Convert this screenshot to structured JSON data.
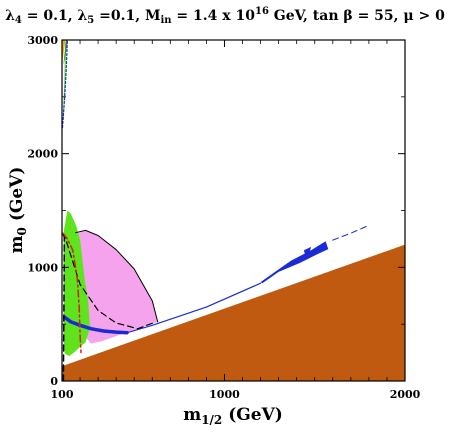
{
  "chart_data": {
    "type": "area",
    "title": {
      "l4_sym": "λ",
      "l4_sub": "4",
      "l4_val": " = 0.1, ",
      "l5_sym": "λ",
      "l5_sub": "5",
      "l5_val": " =0.1, M",
      "min_sub": "in",
      "min_val": " = 1.4 x 10",
      "min_exp": "16",
      "min_unit": " GeV, tan ",
      "beta_sym": "β",
      "tan_val": " = 55,  ",
      "mu_sym": "μ",
      "mu_val": " > 0"
    },
    "xlabel": {
      "main": "m",
      "sub": "1/2",
      "unit": " (GeV)"
    },
    "ylabel": {
      "main": "m",
      "sub": "0",
      "unit": " (GeV)"
    },
    "xlim": [
      100,
      2000
    ],
    "ylim": [
      0,
      3000
    ],
    "xticks": [
      {
        "value": 100,
        "label": "100"
      },
      {
        "value": 1000,
        "label": "1000"
      },
      {
        "value": 2000,
        "label": "2000"
      }
    ],
    "yticks": [
      {
        "value": 0,
        "label": "0"
      },
      {
        "value": 1000,
        "label": "1000"
      },
      {
        "value": 2000,
        "label": "2000"
      },
      {
        "value": 3000,
        "label": "3000"
      }
    ],
    "minor_xticks": [
      200,
      300,
      400,
      500,
      600,
      700,
      800,
      900,
      1100,
      1200,
      1300,
      1400,
      1500,
      1600,
      1700,
      1800,
      1900
    ],
    "minor_yticks": [
      500,
      1500,
      2500
    ],
    "colors": {
      "brown": "#c05a10",
      "green": "#5ee31c",
      "pink": "#f5a3ec",
      "orange": "#f7a52a",
      "dark_green": "#2f8a2a",
      "blue": "#1a2bd6",
      "red": "#d42020",
      "black": "#000000"
    },
    "regions": [
      {
        "name": "brown-stau-lsp-region",
        "color": "brown",
        "points": [
          [
            100,
            130
          ],
          [
            2000,
            1200
          ],
          [
            2000,
            0
          ],
          [
            100,
            0
          ]
        ]
      },
      {
        "name": "pink-gmu-region",
        "color": "pink",
        "points": [
          [
            175,
            1300
          ],
          [
            230,
            1320
          ],
          [
            300,
            1275
          ],
          [
            400,
            1150
          ],
          [
            500,
            980
          ],
          [
            600,
            700
          ],
          [
            630,
            520
          ],
          [
            520,
            460
          ],
          [
            400,
            395
          ],
          [
            320,
            350
          ],
          [
            260,
            330
          ],
          [
            210,
            430
          ],
          [
            180,
            700
          ],
          [
            170,
            1000
          ]
        ]
      },
      {
        "name": "green-bsg-region",
        "color": "green",
        "points": [
          [
            110,
            1320
          ],
          [
            130,
            1500
          ],
          [
            150,
            1470
          ],
          [
            180,
            1360
          ],
          [
            200,
            1240
          ],
          [
            225,
            900
          ],
          [
            245,
            700
          ],
          [
            255,
            470
          ],
          [
            230,
            340
          ],
          [
            200,
            300
          ],
          [
            170,
            255
          ],
          [
            140,
            220
          ],
          [
            115,
            240
          ],
          [
            108,
            400
          ],
          [
            110,
            700
          ],
          [
            108,
            1000
          ]
        ]
      },
      {
        "name": "green-bsg-strip",
        "color": "green",
        "points": [
          [
            105,
            2300
          ],
          [
            112,
            2620
          ],
          [
            118,
            2980
          ],
          [
            124,
            2980
          ],
          [
            118,
            2600
          ],
          [
            110,
            2300
          ]
        ]
      },
      {
        "name": "orange-no-ewsb-region",
        "color": "orange",
        "points": [
          [
            100,
            2780
          ],
          [
            100,
            3000
          ],
          [
            120,
            3000
          ],
          [
            110,
            2900
          ]
        ]
      },
      {
        "name": "dark-green-boundary-region",
        "color": "dark_green",
        "points": [
          [
            108,
            2780
          ],
          [
            122,
            3000
          ],
          [
            132,
            3000
          ],
          [
            118,
            2850
          ]
        ]
      },
      {
        "name": "blue-wmap-funnel-right",
        "color": "blue",
        "points": [
          [
            1200,
            870
          ],
          [
            1280,
            960
          ],
          [
            1370,
            1060
          ],
          [
            1480,
            1150
          ],
          [
            1560,
            1230
          ],
          [
            1575,
            1160
          ],
          [
            1520,
            1120
          ],
          [
            1420,
            1040
          ],
          [
            1300,
            960
          ],
          [
            1210,
            860
          ]
        ]
      },
      {
        "name": "blue-wmap-island",
        "color": "blue",
        "points": [
          [
            1440,
            1150
          ],
          [
            1480,
            1180
          ],
          [
            1470,
            1125
          ],
          [
            1445,
            1120
          ]
        ]
      }
    ],
    "lines": [
      {
        "name": "blue-wmap-band",
        "color": "blue",
        "style": "solid",
        "width": 3.5,
        "points": [
          [
            115,
            560
          ],
          [
            150,
            520
          ],
          [
            200,
            490
          ],
          [
            260,
            460
          ],
          [
            330,
            440
          ],
          [
            400,
            430
          ],
          [
            460,
            425
          ]
        ]
      },
      {
        "name": "blue-wmap-thin",
        "color": "blue",
        "style": "solid",
        "width": 1.2,
        "points": [
          [
            460,
            425
          ],
          [
            600,
            490
          ],
          [
            900,
            650
          ],
          [
            1200,
            860
          ]
        ]
      },
      {
        "name": "blue-dotted-line",
        "color": "blue",
        "style": "dotted",
        "width": 1.2,
        "points": [
          [
            103,
            2230
          ],
          [
            115,
            2500
          ],
          [
            122,
            2700
          ],
          [
            130,
            3000
          ]
        ]
      },
      {
        "name": "black-pink-boundary",
        "color": "black",
        "style": "solid",
        "width": 1.0,
        "points": [
          [
            175,
            1305
          ],
          [
            230,
            1325
          ],
          [
            300,
            1280
          ],
          [
            400,
            1155
          ],
          [
            500,
            985
          ],
          [
            600,
            705
          ],
          [
            630,
            520
          ]
        ]
      },
      {
        "name": "black-dashed-higgs",
        "color": "black",
        "style": "dashed",
        "width": 1.2,
        "points": [
          [
            100,
            1300
          ],
          [
            120,
            1250
          ],
          [
            150,
            1100
          ],
          [
            200,
            850
          ],
          [
            300,
            620
          ],
          [
            400,
            510
          ],
          [
            520,
            460
          ],
          [
            620,
            520
          ]
        ]
      },
      {
        "name": "black-dashed-chargino",
        "color": "black",
        "style": "dashed",
        "width": 1.5,
        "points": [
          [
            108,
            0
          ],
          [
            110,
            500
          ],
          [
            112,
            1000
          ],
          [
            113,
            1300
          ]
        ]
      },
      {
        "name": "red-dash-dot",
        "color": "red",
        "style": "dashdot",
        "width": 1.5,
        "points": [
          [
            105,
            1300
          ],
          [
            130,
            1250
          ],
          [
            160,
            1150
          ],
          [
            185,
            900
          ],
          [
            195,
            650
          ],
          [
            200,
            400
          ],
          [
            205,
            250
          ]
        ]
      },
      {
        "name": "blue-dashed-right",
        "color": "blue",
        "style": "dashed",
        "width": 1.0,
        "points": [
          [
            1600,
            1240
          ],
          [
            1700,
            1300
          ],
          [
            1800,
            1370
          ]
        ]
      }
    ]
  }
}
